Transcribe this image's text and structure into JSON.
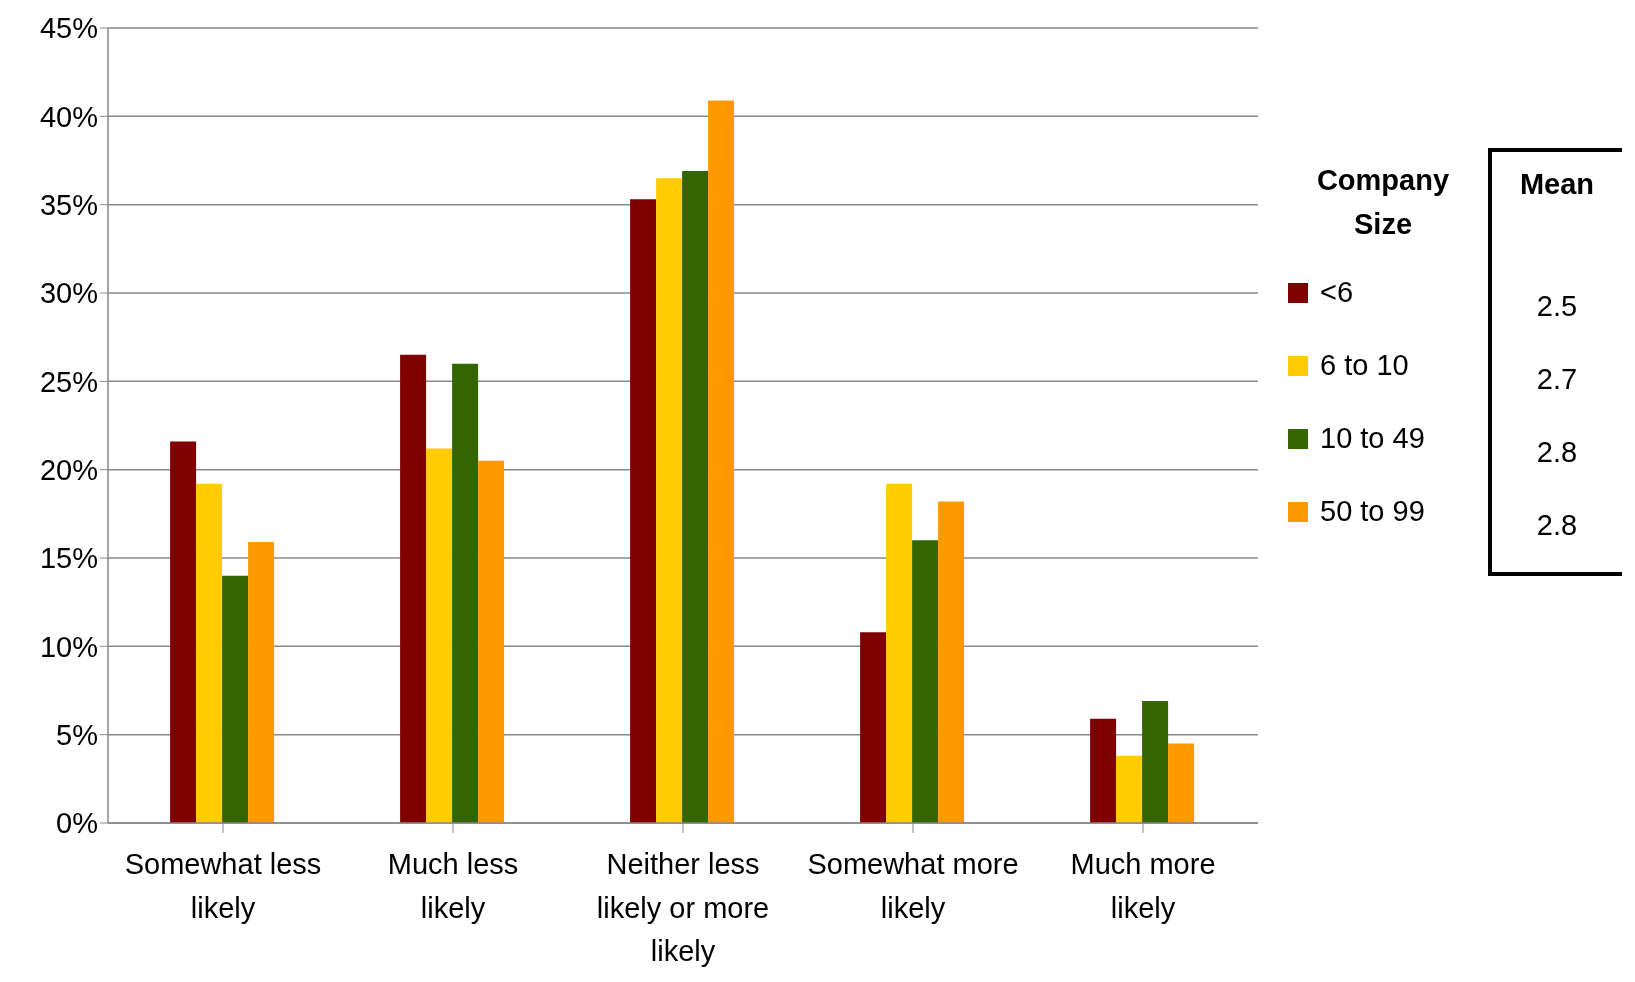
{
  "chart_data": {
    "type": "bar",
    "categories": [
      "Somewhat less likely",
      "Much less likely",
      "Neither less likely or more likely",
      "Somewhat more likely",
      "Much more likely"
    ],
    "series": [
      {
        "name": "<6",
        "color": "#800000",
        "values": [
          21.6,
          26.5,
          35.3,
          10.8,
          5.9
        ]
      },
      {
        "name": "6 to 10",
        "color": "#ffcc00",
        "values": [
          19.2,
          21.2,
          36.5,
          19.2,
          3.8
        ]
      },
      {
        "name": "10 to 49",
        "color": "#336600",
        "values": [
          14.0,
          26.0,
          36.9,
          16.0,
          6.9
        ]
      },
      {
        "name": "50 to 99",
        "color": "#ff9900",
        "values": [
          15.9,
          20.5,
          40.9,
          18.2,
          4.5
        ]
      }
    ],
    "ylim": [
      0,
      45
    ],
    "yticks": [
      {
        "value": 0,
        "label": "0%"
      },
      {
        "value": 5,
        "label": "5%"
      },
      {
        "value": 10,
        "label": "10%"
      },
      {
        "value": 15,
        "label": "15%"
      },
      {
        "value": 20,
        "label": "20%"
      },
      {
        "value": 25,
        "label": "25%"
      },
      {
        "value": 30,
        "label": "30%"
      },
      {
        "value": 35,
        "label": "35%"
      },
      {
        "value": 40,
        "label": "40%"
      },
      {
        "value": 45,
        "label": "45%"
      }
    ],
    "grid": "y",
    "legend": "right",
    "legend_title": "Company Size",
    "annotations": [
      "Mean",
      "2.5",
      "2.7",
      "2.8",
      "2.8"
    ]
  }
}
